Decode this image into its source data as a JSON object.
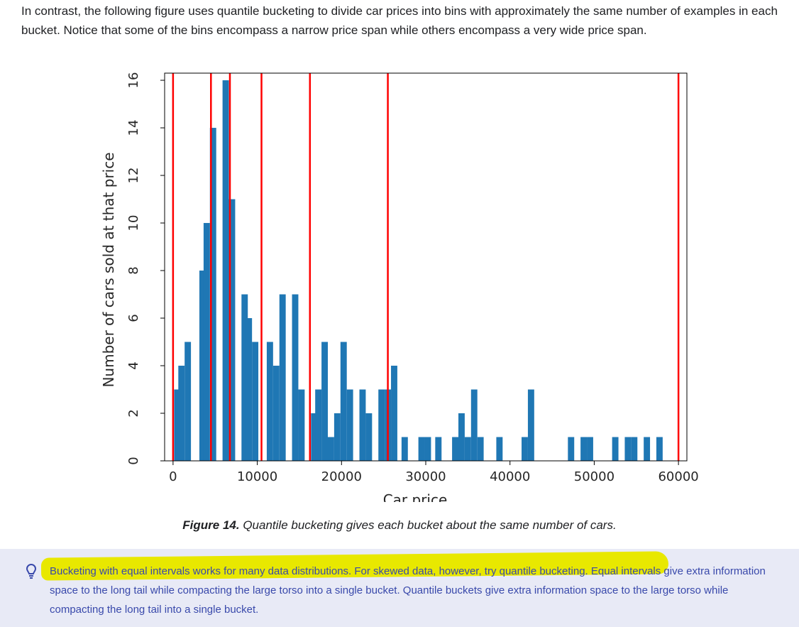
{
  "intro_text": "In contrast, the following figure uses quantile bucketing to divide car prices into bins with approximately the same number of examples in each bucket. Notice that some of the bins encompass a narrow price span while others encompass a very wide price span.",
  "figure": {
    "caption_label": "Figure 14.",
    "caption_text": "Quantile bucketing gives each bucket about the same number of cars."
  },
  "chart_data": {
    "type": "bar",
    "xlabel": "Car price",
    "ylabel": "Number of cars sold at that price",
    "xlim": [
      -1000,
      61000
    ],
    "ylim": [
      0,
      16.3
    ],
    "xticks": [
      0,
      10000,
      20000,
      30000,
      40000,
      50000,
      60000
    ],
    "yticks": [
      0,
      2,
      4,
      6,
      8,
      10,
      12,
      14,
      16
    ],
    "bar_color": "#1f77b4",
    "boundary_color": "#ff0000",
    "bin_width": 750,
    "bins": [
      {
        "x": 500,
        "count": 3
      },
      {
        "x": 1000,
        "count": 4
      },
      {
        "x": 1750,
        "count": 5
      },
      {
        "x": 3500,
        "count": 8
      },
      {
        "x": 4000,
        "count": 10
      },
      {
        "x": 4750,
        "count": 14
      },
      {
        "x": 6250,
        "count": 16
      },
      {
        "x": 7000,
        "count": 11
      },
      {
        "x": 8500,
        "count": 7
      },
      {
        "x": 9000,
        "count": 6
      },
      {
        "x": 9750,
        "count": 5
      },
      {
        "x": 11500,
        "count": 5
      },
      {
        "x": 12250,
        "count": 4
      },
      {
        "x": 13000,
        "count": 7
      },
      {
        "x": 14500,
        "count": 7
      },
      {
        "x": 15250,
        "count": 3
      },
      {
        "x": 16750,
        "count": 2
      },
      {
        "x": 17250,
        "count": 3
      },
      {
        "x": 18000,
        "count": 5
      },
      {
        "x": 18750,
        "count": 1
      },
      {
        "x": 19500,
        "count": 2
      },
      {
        "x": 20250,
        "count": 5
      },
      {
        "x": 21000,
        "count": 3
      },
      {
        "x": 22500,
        "count": 3
      },
      {
        "x": 23250,
        "count": 2
      },
      {
        "x": 24750,
        "count": 3
      },
      {
        "x": 25500,
        "count": 3
      },
      {
        "x": 26250,
        "count": 4
      },
      {
        "x": 27500,
        "count": 1
      },
      {
        "x": 29500,
        "count": 1
      },
      {
        "x": 30250,
        "count": 1
      },
      {
        "x": 31500,
        "count": 1
      },
      {
        "x": 33500,
        "count": 1
      },
      {
        "x": 34250,
        "count": 2
      },
      {
        "x": 35000,
        "count": 1
      },
      {
        "x": 35750,
        "count": 3
      },
      {
        "x": 36500,
        "count": 1
      },
      {
        "x": 38750,
        "count": 1
      },
      {
        "x": 41750,
        "count": 1
      },
      {
        "x": 42500,
        "count": 3
      },
      {
        "x": 47250,
        "count": 1
      },
      {
        "x": 48750,
        "count": 1
      },
      {
        "x": 49500,
        "count": 1
      },
      {
        "x": 52500,
        "count": 1
      },
      {
        "x": 54000,
        "count": 1
      },
      {
        "x": 54750,
        "count": 1
      },
      {
        "x": 56250,
        "count": 1
      },
      {
        "x": 57750,
        "count": 1
      }
    ],
    "quantile_boundaries": [
      0,
      4500,
      6750,
      10500,
      16250,
      25500,
      60000
    ]
  },
  "tip": {
    "icon": "lightbulb-icon",
    "text": "Bucketing with equal intervals works for many data distributions. For skewed data, however, try quantile bucketing. Equal intervals give extra information space to the long tail while compacting the large torso into a single bucket. Quantile buckets give extra information space to the large torso while compacting the long tail into a single bucket."
  }
}
